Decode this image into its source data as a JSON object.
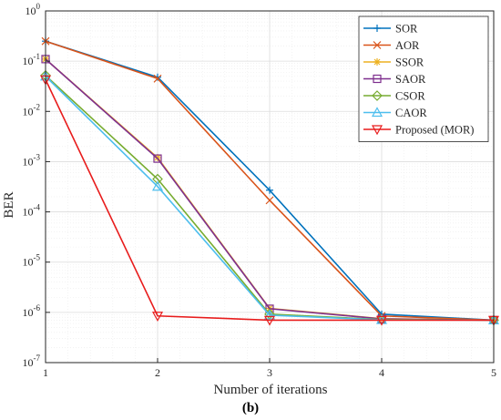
{
  "chart_data": {
    "type": "line",
    "xlabel": "Number of iterations",
    "ylabel": "BER",
    "y_scale": "log",
    "xlim": [
      1,
      5
    ],
    "ylim": [
      1e-07,
      1
    ],
    "x_ticks": [
      1,
      2,
      3,
      4,
      5
    ],
    "y_ticks": [
      {
        "value": 1e-07,
        "base": "10",
        "exp": "-7"
      },
      {
        "value": 1e-06,
        "base": "10",
        "exp": "-6"
      },
      {
        "value": 1e-05,
        "base": "10",
        "exp": "-5"
      },
      {
        "value": 0.0001,
        "base": "10",
        "exp": "-4"
      },
      {
        "value": 0.001,
        "base": "10",
        "exp": "-3"
      },
      {
        "value": 0.01,
        "base": "10",
        "exp": "-2"
      },
      {
        "value": 0.1,
        "base": "10",
        "exp": "-1"
      },
      {
        "value": 1,
        "base": "10",
        "exp": "0"
      }
    ],
    "grid": true,
    "minor_grid": true,
    "legend_position": "top-right",
    "x": [
      1,
      2,
      3,
      4,
      5
    ],
    "series": [
      {
        "name": "SOR",
        "color": "#0072BD",
        "marker": "plus",
        "values": [
          0.25,
          0.048,
          0.00027,
          9.2e-07,
          7e-07
        ]
      },
      {
        "name": "AOR",
        "color": "#D95319",
        "marker": "x",
        "values": [
          0.25,
          0.045,
          0.00017,
          8.5e-07,
          7e-07
        ]
      },
      {
        "name": "SSOR",
        "color": "#EDB120",
        "marker": "star",
        "values": [
          0.11,
          0.0012,
          1.2e-06,
          7.5e-07,
          7e-07
        ]
      },
      {
        "name": "SAOR",
        "color": "#7E2F8E",
        "marker": "square",
        "values": [
          0.11,
          0.00115,
          1.18e-06,
          7.4e-07,
          7e-07
        ]
      },
      {
        "name": "CSOR",
        "color": "#77AC30",
        "marker": "diamond",
        "values": [
          0.052,
          0.00045,
          9.2e-07,
          7.2e-07,
          7e-07
        ]
      },
      {
        "name": "CAOR",
        "color": "#4DBEEE",
        "marker": "triangle-up",
        "values": [
          0.05,
          0.00032,
          8.8e-07,
          7.1e-07,
          7e-07
        ]
      },
      {
        "name": "Proposed (MOR)",
        "color": "#E81C1C",
        "marker": "triangle-down",
        "values": [
          0.043,
          8.5e-07,
          7e-07,
          7e-07,
          7e-07
        ]
      }
    ]
  },
  "subfigure_label": "(b)"
}
